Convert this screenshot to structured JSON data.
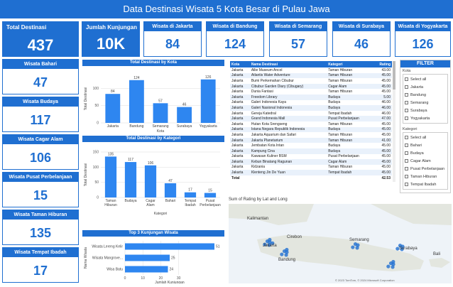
{
  "title": "Data Destinasi Wisata 5 Kota Besar di Pulau Jawa",
  "kpi_total": {
    "label": "Total Destinasi",
    "value": "437"
  },
  "kpi_kunjungan": {
    "label": "Jumlah Kunjungan",
    "value": "10K"
  },
  "kpi_cities": [
    {
      "label": "Wisata di Jakarta",
      "value": "84"
    },
    {
      "label": "Wisata di Bandung",
      "value": "124"
    },
    {
      "label": "Wisata di Semarang",
      "value": "57"
    },
    {
      "label": "Wisata di Surabaya",
      "value": "46"
    },
    {
      "label": "Wisata di Yogyakarta",
      "value": "126"
    }
  ],
  "kpi_categories": [
    {
      "label": "Wisata Bahari",
      "value": "47"
    },
    {
      "label": "Wisata Budaya",
      "value": "117"
    },
    {
      "label": "Wisata Cagar Alam",
      "value": "106"
    },
    {
      "label": "Wisata Pusat Perbelanjaan",
      "value": "15"
    },
    {
      "label": "Wisata Taman Hiburan",
      "value": "135"
    },
    {
      "label": "Wisata Tempat Ibadah",
      "value": "17"
    }
  ],
  "colors": {
    "primary": "#1f6fd1",
    "bar": "#2e86f0"
  },
  "chart_data": [
    {
      "type": "bar",
      "title": "Total Destinasi by Kota",
      "xlabel": "Kota",
      "ylabel": "Total Destinasi",
      "categories": [
        "Jakarta",
        "Bandung",
        "Semarang",
        "Surabaya",
        "Yogyakarta"
      ],
      "values": [
        84,
        124,
        57,
        46,
        126
      ],
      "ylim": [
        0,
        140
      ]
    },
    {
      "type": "bar",
      "title": "Total Destinasi by Kategori",
      "xlabel": "Kategori",
      "ylabel": "Total Destinasi",
      "categories": [
        "Taman Hiburan",
        "Budaya",
        "Cagar Alam",
        "Bahari",
        "Tempat Ibadah",
        "Pusat Perbelanjaan"
      ],
      "values": [
        135,
        117,
        106,
        47,
        17,
        15
      ],
      "ylim": [
        0,
        150
      ]
    },
    {
      "type": "bar",
      "title": "Top 3 Kunjungan Wisata",
      "xlabel": "Jumlah Kunjungan",
      "ylabel": "Nama Wisata",
      "categories": [
        "Wisata Lereng Kelir",
        "Wisata Mangrove...",
        "Wisa Batu"
      ],
      "values": [
        51,
        25,
        24
      ],
      "xlim": [
        0,
        50
      ],
      "xticks": [
        "0",
        "10",
        "20",
        "30"
      ]
    }
  ],
  "table": {
    "headers": [
      "Kota",
      "Nama Destinasi",
      "Kategori",
      "Rating"
    ],
    "rows": [
      [
        "Jakarta",
        "Allie Museum Ancol",
        "Taman Hiburan",
        "43.00"
      ],
      [
        "Jakarta",
        "Atlantis Water Adventure",
        "Taman Hiburan",
        "45.00"
      ],
      [
        "Jakarta",
        "Bumi Perkemahan Cibubur",
        "Taman Hiburan",
        "45.00"
      ],
      [
        "Jakarta",
        "Cibubur Garden Diary (Cibugary)",
        "Cagar Alam",
        "45.00"
      ],
      [
        "Jakarta",
        "Dunia Fantasi",
        "Taman Hiburan",
        "45.00"
      ],
      [
        "Jakarta",
        "Freedom Library",
        "Budaya",
        "5.00"
      ],
      [
        "Jakarta",
        "Galeri Indonesia Kaya",
        "Budaya",
        "46.00"
      ],
      [
        "Jakarta",
        "Galeri Nasional Indonesia",
        "Budaya",
        "46.00"
      ],
      [
        "Jakarta",
        "Gereja Katedral",
        "Tempat Ibadah",
        "46.00"
      ],
      [
        "Jakarta",
        "Grand Indonesia Mall",
        "Pusat Perbelanjaan",
        "47.00"
      ],
      [
        "Jakarta",
        "Hutan Kota Srengseng",
        "Taman Hiburan",
        "45.00"
      ],
      [
        "Jakarta",
        "Istana Negara Republik Indonesia",
        "Budaya",
        "45.00"
      ],
      [
        "Jakarta",
        "Jakarta Aquarium dan Safari",
        "Taman Hiburan",
        "45.00"
      ],
      [
        "Jakarta",
        "Jakarta Planetarium",
        "Taman Hiburan",
        "41.00"
      ],
      [
        "Jakarta",
        "Jembatan Kota Intan",
        "Budaya",
        "45.00"
      ],
      [
        "Jakarta",
        "Kampung Cina",
        "Budaya",
        "45.00"
      ],
      [
        "Jakarta",
        "Kawasan Kuliner BSM",
        "Pusat Perbelanjaan",
        "45.00"
      ],
      [
        "Jakarta",
        "Kebun Binatang Ragunan",
        "Cagar Alam",
        "45.00"
      ],
      [
        "Jakarta",
        "Kidzania",
        "Taman Hiburan",
        "45.00"
      ],
      [
        "Jakarta",
        "Klenteng Jin De Yuan",
        "Tempat Ibadah",
        "45.00"
      ]
    ],
    "total_label": "Total",
    "total_value": "42.53"
  },
  "filter": {
    "title": "FILTER",
    "kota_title": "Kota",
    "kota_options": [
      "Select all",
      "Jakarta",
      "Bandung",
      "Semarang",
      "Surabaya",
      "Yogyakarta"
    ],
    "kategori_title": "Kategori",
    "kategori_options": [
      "Select all",
      "Bahari",
      "Budaya",
      "Cagar Alam",
      "Pusat Perbelanjaan",
      "Taman Hiburan",
      "Tempat Ibadah"
    ]
  },
  "map": {
    "title": "Sum of Rating by Lat and Long",
    "labels": [
      "Kalimantan",
      "Jakarta",
      "Cirebon",
      "Semarang",
      "Bandung",
      "Surabaya",
      "Bali"
    ],
    "attribution": "© 2023 TomTom, © 2024 Microsoft Corporation"
  }
}
